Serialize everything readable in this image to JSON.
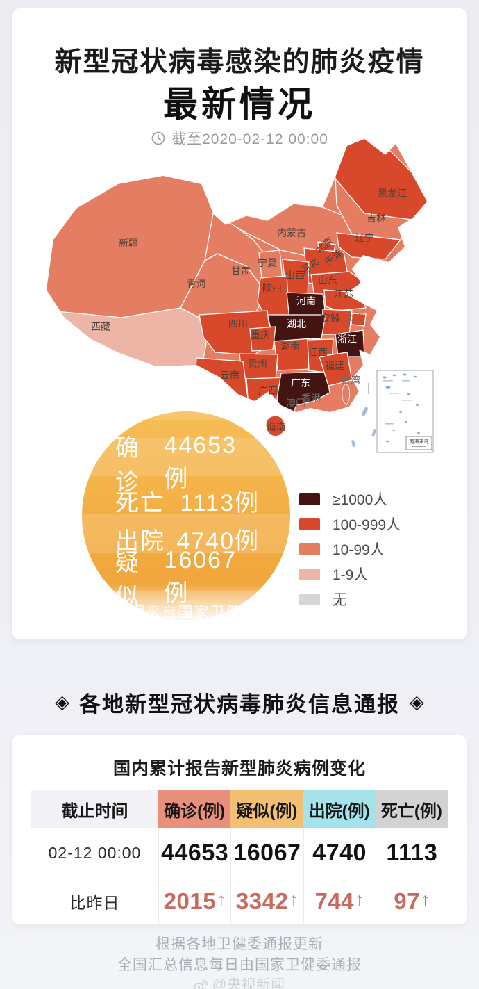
{
  "page": {
    "background": "#edeef4",
    "card_background": "#ffffff"
  },
  "header": {
    "title": "新型冠状病毒感染的肺炎疫情",
    "subtitle": "最新情况",
    "as_of": "截至2020-02-12 00:00"
  },
  "map": {
    "level_colors": {
      "ge1000": "#431411",
      "100-999": "#d8492c",
      "10-99": "#e57d63",
      "1-9": "#ecb5a6",
      "none": "#d6d6d6"
    },
    "legend": [
      {
        "label": "≥1000人",
        "level": "ge1000"
      },
      {
        "label": "100-999人",
        "level": "100-999"
      },
      {
        "label": "10-99人",
        "level": "10-99"
      },
      {
        "label": "1-9人",
        "level": "1-9"
      },
      {
        "label": "无",
        "level": "none"
      }
    ],
    "inset_label": "南海诸岛",
    "provinces": [
      {
        "id": "xinjiang",
        "name": "新疆",
        "level": "10-99"
      },
      {
        "id": "xizang",
        "name": "西藏",
        "level": "1-9"
      },
      {
        "id": "qinghai",
        "name": "青海",
        "level": "10-99"
      },
      {
        "id": "gansu",
        "name": "甘肃",
        "level": "10-99"
      },
      {
        "id": "ningxia",
        "name": "宁夏",
        "level": "10-99"
      },
      {
        "id": "neimenggu",
        "name": "内蒙古",
        "level": "10-99"
      },
      {
        "id": "heilongjiang",
        "name": "黑龙江",
        "level": "100-999"
      },
      {
        "id": "jilin",
        "name": "吉林",
        "level": "10-99"
      },
      {
        "id": "liaoning",
        "name": "辽宁",
        "level": "100-999"
      },
      {
        "id": "beijing",
        "name": "北京",
        "level": "100-999"
      },
      {
        "id": "tianjin",
        "name": "天津",
        "level": "100-999"
      },
      {
        "id": "hebei",
        "name": "河北",
        "level": "100-999"
      },
      {
        "id": "shanxi",
        "name": "山西",
        "level": "100-999"
      },
      {
        "id": "shandong",
        "name": "山东",
        "level": "100-999"
      },
      {
        "id": "shaanxi",
        "name": "陕西",
        "level": "100-999"
      },
      {
        "id": "henan",
        "name": "河南",
        "level": "ge1000"
      },
      {
        "id": "jiangsu",
        "name": "江苏",
        "level": "100-999"
      },
      {
        "id": "anhui",
        "name": "安徽",
        "level": "100-999"
      },
      {
        "id": "shanghai",
        "name": "上海",
        "level": "100-999"
      },
      {
        "id": "zhejiang",
        "name": "浙江",
        "level": "ge1000"
      },
      {
        "id": "hubei",
        "name": "湖北",
        "level": "ge1000"
      },
      {
        "id": "sichuan",
        "name": "四川",
        "level": "100-999"
      },
      {
        "id": "chongqing",
        "name": "重庆",
        "level": "100-999"
      },
      {
        "id": "hunan",
        "name": "湖南",
        "level": "100-999"
      },
      {
        "id": "jiangxi",
        "name": "江西",
        "level": "100-999"
      },
      {
        "id": "guizhou",
        "name": "贵州",
        "level": "100-999"
      },
      {
        "id": "yunnan",
        "name": "云南",
        "level": "100-999"
      },
      {
        "id": "guangxi",
        "name": "广西",
        "level": "100-999"
      },
      {
        "id": "guangdong",
        "name": "广东",
        "level": "ge1000"
      },
      {
        "id": "fujian",
        "name": "福建",
        "level": "100-999"
      },
      {
        "id": "taiwan",
        "name": "台湾",
        "level": "10-99"
      },
      {
        "id": "xianggang",
        "name": "香港",
        "level": "10-99"
      },
      {
        "id": "aomen",
        "name": "澳门",
        "level": "10-99"
      },
      {
        "id": "hainan",
        "name": "海南",
        "level": "100-999"
      }
    ]
  },
  "stats": {
    "items": [
      {
        "label": "确诊",
        "value": "44653例"
      },
      {
        "label": "死亡",
        "value": "1113例"
      },
      {
        "label": "出院",
        "value": "4740例"
      },
      {
        "label": "疑似",
        "value": "16067例"
      }
    ],
    "source": "数据来自国家卫健委"
  },
  "section": {
    "ornament": "◈",
    "title": "各地新型冠状病毒肺炎信息通报"
  },
  "table": {
    "title": "国内累计报告新型肺炎病例变化",
    "columns": [
      {
        "label": "截止时间",
        "bg": "#f1f1f6"
      },
      {
        "label": "确诊(例)",
        "bg": "#e8907c"
      },
      {
        "label": "疑似(例)",
        "bg": "#f3bf72"
      },
      {
        "label": "出院(例)",
        "bg": "#a3e3e9"
      },
      {
        "label": "死亡(例)",
        "bg": "#d2d2d2"
      }
    ],
    "rows": [
      {
        "label": "02-12 00:00",
        "values": [
          "44653",
          "16067",
          "4740",
          "1113"
        ],
        "delta": false,
        "arrow": ""
      },
      {
        "label": "比昨日",
        "values": [
          "2015",
          "3342",
          "744",
          "97"
        ],
        "delta": true,
        "arrow": "↑"
      }
    ],
    "delta_color": "#c96a5f"
  },
  "footer": {
    "line1": "根据各地卫健委通报更新",
    "line2": "全国汇总信息每日由国家卫健委通报",
    "watermark": "@央视新闻"
  },
  "chart_data": [
    {
      "type": "heatmap",
      "subtype": "choropleth-map-of-china",
      "title": "新型冠状病毒感染的肺炎疫情 最新情况",
      "as_of": "2020-02-12 00:00",
      "legend_position": "bottom-right",
      "buckets": [
        "≥1000人",
        "100-999人",
        "10-99人",
        "1-9人",
        "无"
      ],
      "regions": {
        "≥1000人": [
          "河南",
          "湖北",
          "浙江",
          "广东"
        ],
        "100-999人": [
          "黑龙江",
          "辽宁",
          "北京",
          "天津",
          "河北",
          "山西",
          "山东",
          "陕西",
          "江苏",
          "安徽",
          "上海",
          "四川",
          "重庆",
          "湖南",
          "江西",
          "贵州",
          "云南",
          "广西",
          "福建",
          "海南"
        ],
        "10-99人": [
          "新疆",
          "青海",
          "甘肃",
          "宁夏",
          "内蒙古",
          "吉林",
          "台湾",
          "香港",
          "澳门"
        ],
        "1-9人": [
          "西藏"
        ],
        "无": []
      },
      "summary": {
        "确诊": 44653,
        "死亡": 1113,
        "出院": 4740,
        "疑似": 16067,
        "source": "数据来自国家卫健委"
      }
    },
    {
      "type": "table",
      "title": "国内累计报告新型肺炎病例变化",
      "columns": [
        "截止时间",
        "确诊(例)",
        "疑似(例)",
        "出院(例)",
        "死亡(例)"
      ],
      "rows": [
        [
          "02-12 00:00",
          "44653",
          "16067",
          "4740",
          "1113"
        ],
        [
          "比昨日",
          "2015↑",
          "3342↑",
          "744↑",
          "97↑"
        ]
      ]
    }
  ]
}
